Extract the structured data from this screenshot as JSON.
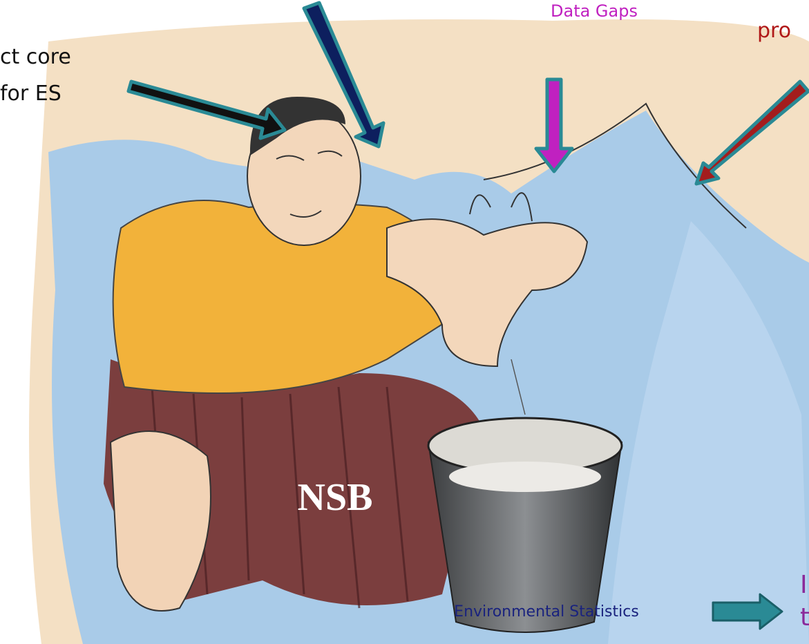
{
  "labels": {
    "left_line1": "ct core",
    "left_line2": "for ES",
    "data_gaps": "Data Gaps",
    "top_right": "pro",
    "figure_label": "NSB",
    "caption": "Environmental Statistics",
    "right_line1": "I",
    "right_line2": "t"
  }
}
